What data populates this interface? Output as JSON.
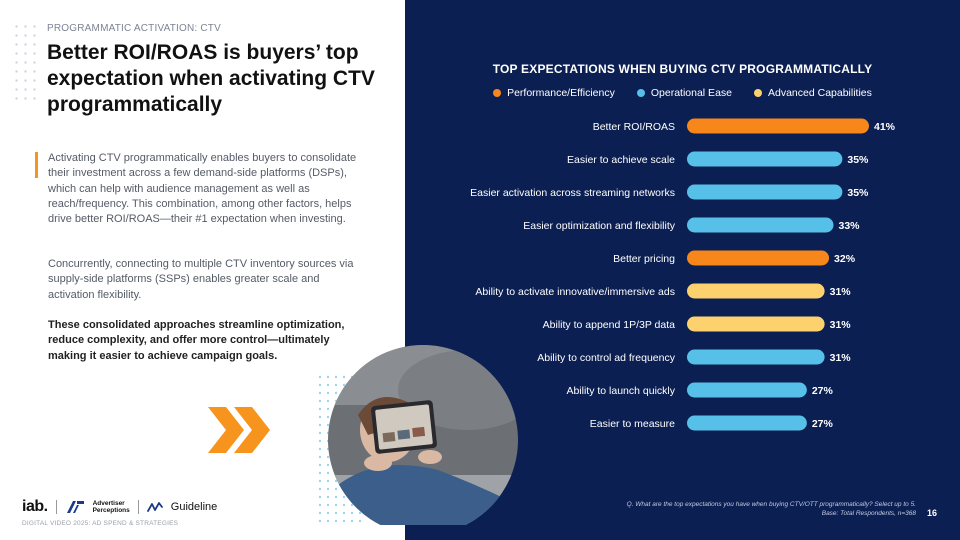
{
  "slide": {
    "kicker": "PROGRAMMATIC ACTIVATION: CTV",
    "headline": "Better ROI/ROAS is buyers’ top expectation when activating CTV programmatically",
    "paragraphs": [
      "Activating CTV programmatically enables buyers to consolidate their investment across a few demand-side platforms (DSPs), which can help with audience management as well as reach/frequency. This combination, among other factors, helps drive better ROI/ROAS—their #1 expectation when investing.",
      "Concurrently, connecting to multiple CTV inventory sources via supply-side platforms (SSPs) enables greater scale and activation flexibility.",
      "These consolidated approaches streamline optimization, reduce complexity, and offer more control—ultimately making it easier to achieve campaign goals."
    ],
    "footer_left": "DIGITAL VIDEO 2025: AD SPEND & STRATEGIES",
    "footnote_lines": [
      "Q. What are the top expectations you have when buying CTV/OTT programmatically? Select up to 5.",
      "Base: Total Respondents, n=368"
    ],
    "page_number": "16",
    "logos": {
      "iab": "iab.",
      "ap_line1": "Advertiser",
      "ap_line2": "Perceptions",
      "guideline": "Guideline"
    },
    "colors": {
      "background_right": "#0b1f52",
      "performance": "#f7861b",
      "operational": "#57c0e8",
      "advanced": "#fdd26e",
      "accent": "#f7941d"
    }
  },
  "chart_data": {
    "type": "bar",
    "orientation": "horizontal",
    "title": "TOP EXPECTATIONS WHEN BUYING CTV PROGRAMMATICALLY",
    "legend": [
      {
        "name": "Performance/Efficiency",
        "color": "#f7861b"
      },
      {
        "name": "Operational Ease",
        "color": "#57c0e8"
      },
      {
        "name": "Advanced Capabilities",
        "color": "#fdd26e"
      }
    ],
    "legend_position": "top",
    "categories": [
      "Better ROI/ROAS",
      "Easier to achieve scale",
      "Easier activation across streaming networks",
      "Easier optimization and flexibility",
      "Better pricing",
      "Ability to activate innovative/immersive ads",
      "Ability to append 1P/3P data",
      "Ability to control ad frequency",
      "Ability to launch quickly",
      "Easier to measure"
    ],
    "values": [
      41,
      35,
      35,
      33,
      32,
      31,
      31,
      31,
      27,
      27
    ],
    "value_suffix": "%",
    "groups": [
      "Performance/Efficiency",
      "Operational Ease",
      "Operational Ease",
      "Operational Ease",
      "Performance/Efficiency",
      "Advanced Capabilities",
      "Advanced Capabilities",
      "Operational Ease",
      "Operational Ease",
      "Operational Ease"
    ],
    "xlim": [
      0,
      41
    ],
    "grid": false
  }
}
